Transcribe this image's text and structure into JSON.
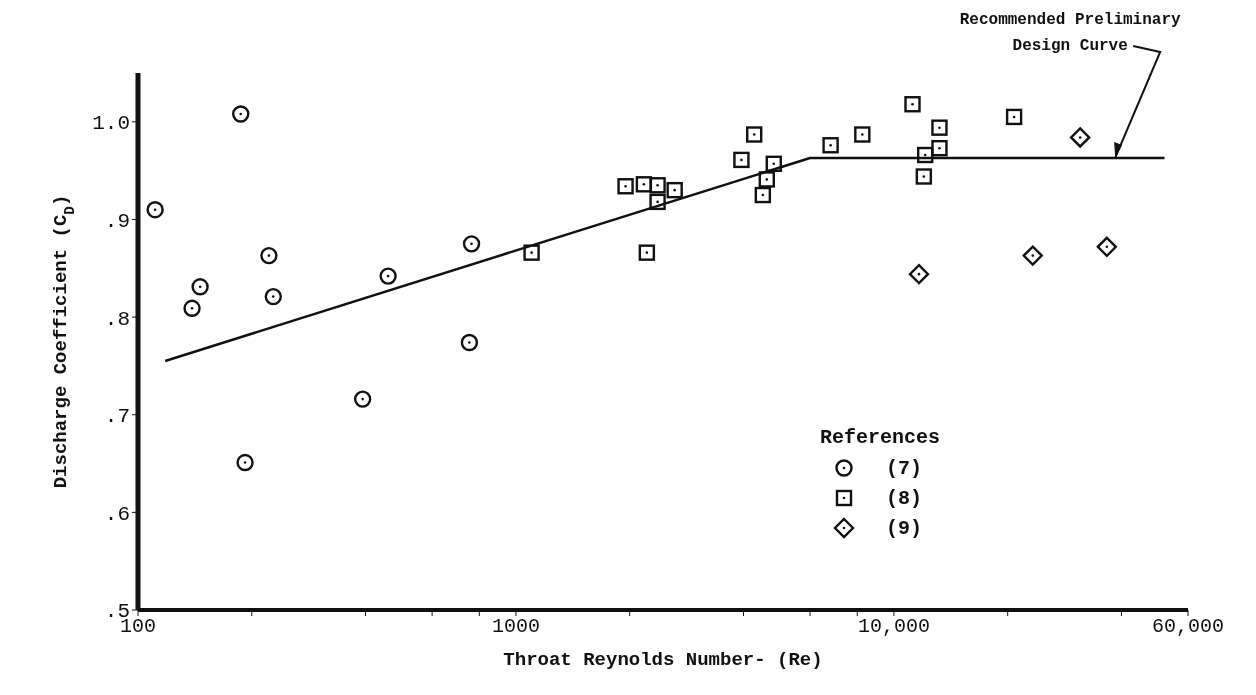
{
  "chart_data": {
    "type": "scatter",
    "xlabel": "Throat Reynolds Number- (Re)",
    "ylabel": "Discharge Coefficient (C$_{D}$)",
    "legend_title": "References",
    "legend": "bottom right",
    "log": "x",
    "grid": false,
    "xlim": [
      100,
      60000
    ],
    "xticks": [
      100,
      {
        "value": 200,
        "label": null
      },
      {
        "value": 400,
        "label": null
      },
      {
        "value": 600,
        "label": null
      },
      {
        "value": 800,
        "label": null
      },
      1000,
      {
        "value": 2000,
        "label": null
      },
      {
        "value": 4000,
        "label": null
      },
      {
        "value": 6000,
        "label": null
      },
      {
        "value": 8000,
        "label": null
      },
      {
        "value": 10000,
        "label": "10,000"
      },
      {
        "value": 20000,
        "label": null
      },
      {
        "value": 40000,
        "label": null
      },
      {
        "value": 60000,
        "label": "60,000"
      }
    ],
    "ylim": [
      0.5,
      1.05
    ],
    "yticks": [
      {
        "value": 0.5,
        "label": ".5"
      },
      {
        "value": 0.6,
        "label": ".6"
      },
      {
        "value": 0.7,
        "label": ".7"
      },
      {
        "value": 0.8,
        "label": ".8"
      },
      {
        "value": 0.9,
        "label": ".9"
      },
      {
        "value": 1.0,
        "label": "1.0"
      }
    ],
    "annotations": [
      {
        "text": "Recommended Preliminary Design Curve",
        "x": 38500,
        "y": 0.963
      }
    ],
    "series": [
      {
        "type": "line",
        "color": "#111111",
        "marker": "none",
        "x": [
          118,
          6000,
          52000
        ],
        "values": [
          0.755,
          0.963,
          0.963
        ]
      },
      {
        "name": "(7)",
        "color": "#111111",
        "marker": "circle",
        "x": [
          111,
          187,
          139,
          146,
          192,
          222,
          228,
          393,
          459,
          763,
          753
        ],
        "values": [
          0.91,
          1.008,
          0.809,
          0.831,
          0.651,
          0.863,
          0.821,
          0.716,
          0.842,
          0.875,
          0.774
        ]
      },
      {
        "name": "(8)",
        "color": "#111111",
        "marker": "square",
        "x": [
          1100,
          1950,
          2180,
          2370,
          2370,
          2630,
          2220,
          3950,
          4270,
          4810,
          4610,
          4500,
          6800,
          8250,
          11200,
          13200,
          13200,
          12100,
          12000,
          20800
        ],
        "values": [
          0.866,
          0.934,
          0.936,
          0.935,
          0.918,
          0.93,
          0.866,
          0.961,
          0.987,
          0.957,
          0.941,
          0.925,
          0.976,
          0.987,
          1.018,
          0.994,
          0.973,
          0.966,
          0.944,
          1.005
        ]
      },
      {
        "name": "(9)",
        "color": "#111111",
        "marker": "diamond",
        "x": [
          31100,
          11650,
          23300,
          36600
        ],
        "values": [
          0.984,
          0.844,
          0.863,
          0.872
        ]
      }
    ]
  }
}
